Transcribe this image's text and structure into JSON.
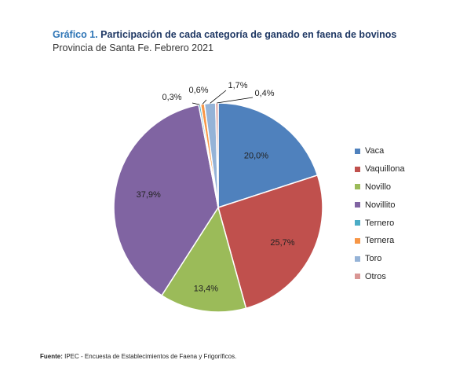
{
  "title": {
    "prefix": "Gráfico 1.",
    "text": "Participación de cada categoría de ganado en faena de bovinos"
  },
  "subtitle": "Provincia de Santa Fe. Febrero 2021",
  "footer": {
    "label": "Fuente:",
    "text": "IPEC - Encuesta de Establecimientos de Faena y Frigoríficos."
  },
  "chart_data": {
    "type": "pie",
    "title": "Participación de cada categoría de ganado en faena de bovinos",
    "subtitle": "Provincia de Santa Fe. Febrero 2021",
    "legend_position": "right",
    "slices": [
      {
        "name": "Vaca",
        "value": 20.0,
        "label": "20,0%",
        "color": "#4f81bd"
      },
      {
        "name": "Vaquillona",
        "value": 25.7,
        "label": "25,7%",
        "color": "#c0504d"
      },
      {
        "name": "Novillo",
        "value": 13.4,
        "label": "13,4%",
        "color": "#9bbb59"
      },
      {
        "name": "Novillito",
        "value": 37.9,
        "label": "37,9%",
        "color": "#8064a2"
      },
      {
        "name": "Ternero",
        "value": 0.3,
        "label": "0,3%",
        "color": "#4bacc6"
      },
      {
        "name": "Ternera",
        "value": 0.6,
        "label": "0,6%",
        "color": "#f79646"
      },
      {
        "name": "Toro",
        "value": 1.7,
        "label": "1,7%",
        "color": "#95b3d7"
      },
      {
        "name": "Otros",
        "value": 0.4,
        "label": "0,4%",
        "color": "#d99694"
      }
    ]
  }
}
